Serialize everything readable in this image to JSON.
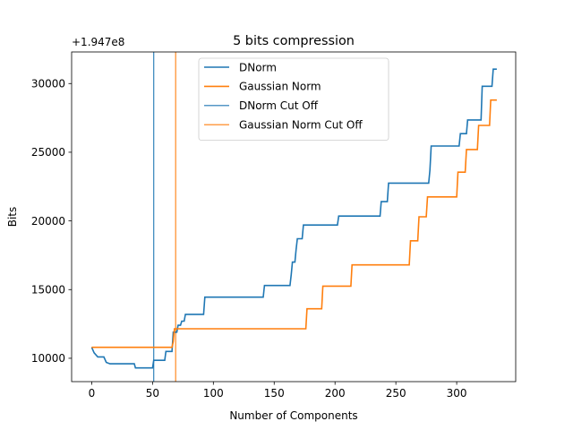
{
  "chart_data": {
    "type": "line",
    "title": "5 bits compression",
    "xlabel": "Number of Components",
    "ylabel": "Bits",
    "offset_label": "+1.947e8",
    "xlim": [
      -16.5,
      348.5
    ],
    "ylim": [
      8300,
      32300
    ],
    "xticks": [
      0,
      50,
      100,
      150,
      200,
      250,
      300
    ],
    "yticks": [
      10000,
      15000,
      20000,
      25000,
      30000
    ],
    "ytick_labels": [
      "10000",
      "15000",
      "20000",
      "25000",
      "30000"
    ],
    "legend_position": "upper-center",
    "series": [
      {
        "name": "DNorm",
        "color": "#1f77b4",
        "points": [
          [
            0,
            10800
          ],
          [
            2,
            10400
          ],
          [
            5,
            10100
          ],
          [
            10,
            10100
          ],
          [
            12,
            9700
          ],
          [
            15,
            9600
          ],
          [
            35,
            9600
          ],
          [
            36,
            9300
          ],
          [
            50,
            9300
          ],
          [
            51,
            9850
          ],
          [
            60,
            9850
          ],
          [
            61,
            10500
          ],
          [
            66,
            10500
          ],
          [
            67,
            11900
          ],
          [
            70,
            11900
          ],
          [
            71,
            12400
          ],
          [
            73,
            12400
          ],
          [
            74,
            12700
          ],
          [
            76,
            12700
          ],
          [
            77,
            13200
          ],
          [
            92,
            13200
          ],
          [
            93,
            14450
          ],
          [
            141,
            14450
          ],
          [
            142,
            15300
          ],
          [
            163,
            15300
          ],
          [
            164,
            16100
          ],
          [
            165,
            17000
          ],
          [
            167,
            17000
          ],
          [
            168,
            17900
          ],
          [
            169,
            18700
          ],
          [
            173,
            18700
          ],
          [
            174,
            19700
          ],
          [
            202,
            19700
          ],
          [
            203,
            20350
          ],
          [
            237,
            20350
          ],
          [
            238,
            21400
          ],
          [
            243,
            21400
          ],
          [
            244,
            22750
          ],
          [
            277,
            22750
          ],
          [
            278,
            23700
          ],
          [
            279,
            25450
          ],
          [
            302,
            25450
          ],
          [
            303,
            26350
          ],
          [
            308,
            26350
          ],
          [
            309,
            27350
          ],
          [
            320,
            27350
          ],
          [
            321,
            29800
          ],
          [
            329,
            29800
          ],
          [
            330,
            31050
          ],
          [
            333,
            31050
          ]
        ]
      },
      {
        "name": "Gaussian Norm",
        "color": "#ff7f0e",
        "points": [
          [
            0,
            10800
          ],
          [
            66,
            10800
          ],
          [
            67,
            11200
          ],
          [
            68,
            12150
          ],
          [
            176,
            12150
          ],
          [
            177,
            13600
          ],
          [
            189,
            13600
          ],
          [
            190,
            15250
          ],
          [
            213,
            15250
          ],
          [
            214,
            16800
          ],
          [
            261,
            16800
          ],
          [
            262,
            18550
          ],
          [
            268,
            18550
          ],
          [
            269,
            20300
          ],
          [
            275,
            20300
          ],
          [
            276,
            21750
          ],
          [
            300,
            21750
          ],
          [
            301,
            23550
          ],
          [
            307,
            23550
          ],
          [
            308,
            25200
          ],
          [
            317,
            25200
          ],
          [
            318,
            26950
          ],
          [
            327,
            26950
          ],
          [
            328,
            28800
          ],
          [
            333,
            28800
          ]
        ]
      }
    ],
    "cutoffs": [
      {
        "name": "DNorm Cut Off",
        "x": 51,
        "color": "#1f77b4"
      },
      {
        "name": "Gaussian Norm Cut Off",
        "x": 69,
        "color": "#ff7f0e"
      }
    ]
  }
}
